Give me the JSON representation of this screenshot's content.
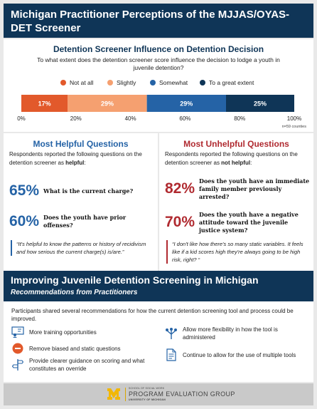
{
  "header": {
    "title": "Michigan Practitioner Perceptions of the MJJAS/OYAS-DET Screener"
  },
  "chart_data": {
    "type": "bar",
    "orientation": "horizontal-stacked",
    "title": "Detention Screener Influence on Detention Decision",
    "subtitle": "To what extent does the detention screener score influence the decision to lodge a youth in juvenile detention?",
    "categories": [
      "Not at all",
      "Slightly",
      "Somewhat",
      "To a great extent"
    ],
    "values": [
      17,
      29,
      29,
      25
    ],
    "value_labels": [
      "17%",
      "29%",
      "29%",
      "25%"
    ],
    "colors": [
      "#e2592b",
      "#f5a070",
      "#2563a6",
      "#0f3557"
    ],
    "label_colors": [
      "#ffffff",
      "#ffffff",
      "#ffffff",
      "#ffffff"
    ],
    "xlim": [
      0,
      100
    ],
    "xticks": [
      "0%",
      "20%",
      "40%",
      "60%",
      "80%",
      "100%"
    ],
    "legend_position": "top",
    "note": "n=59 counties"
  },
  "helpful": {
    "title": "Most Helpful Questions",
    "intro_pre": "Respondents reported the following questions on the detention screener as ",
    "intro_bold": "helpful",
    "intro_post": ":",
    "items": [
      {
        "pct": "65%",
        "text": "What is the current charge?"
      },
      {
        "pct": "60%",
        "text": "Does the youth have prior offenses?"
      }
    ],
    "quote": "“It's helpful to know the patterns or history of recidivism and how serious the current charge(s) is/are.”"
  },
  "unhelpful": {
    "title": "Most Unhelpful Questions",
    "intro_pre": "Respondents reported the following questions on the detention screener as ",
    "intro_bold": "not helpful",
    "intro_post": ":",
    "items": [
      {
        "pct": "82%",
        "text": "Does the youth have an immediate family member previously arrested?"
      },
      {
        "pct": "70%",
        "text": "Does the youth have a negative attitude toward the juvenile justice system?"
      }
    ],
    "quote": "“I don't like how there's so many static variables. It feels like if a kid scores high they're always going to be high risk, right? “"
  },
  "recommendations": {
    "title": "Improving Juvenile Detention Screening in Michigan",
    "subtitle": "Recommendations from Practitioners",
    "intro": "Participants shared several recommendations for how the current detention screening tool and process could be improved.",
    "items": [
      {
        "icon": "training-icon",
        "text": "More training opportunities"
      },
      {
        "icon": "remove-icon",
        "text": "Remove biased and static questions"
      },
      {
        "icon": "guidance-icon",
        "text": "Provide clearer guidance on scoring and what constitutes an override"
      },
      {
        "icon": "flexibility-icon",
        "text": "Allow more flexibility in how the tool is administered"
      },
      {
        "icon": "tools-icon",
        "text": "Continue to allow for the use of multiple tools"
      }
    ]
  },
  "footer": {
    "small": "SCHOOL OF SOCIAL WORK",
    "main": "PROGRAM EVALUATION GROUP",
    "university": "UNIVERSITY OF MICHIGAN"
  }
}
